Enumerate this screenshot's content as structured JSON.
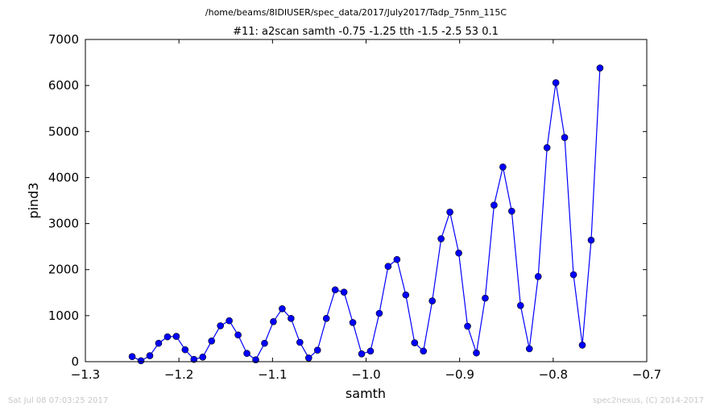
{
  "footer": {
    "timestamp": "Sat Jul 08 07:03:25 2017",
    "credit": "spec2nexus, (C) 2014-2017"
  },
  "chart_data": {
    "type": "line",
    "suptitle": "/home/beams/8IDIUSER/spec_data/2017/July2017/Tadp_75nm_115C",
    "title": "#11: a2scan  samth -0.75 -1.25  tth -1.5 -2.5  53 0.1",
    "xlabel": "samth",
    "ylabel": "pind3",
    "xlim": [
      -1.3,
      -0.7
    ],
    "ylim": [
      0,
      7000
    ],
    "xticks": [
      -1.3,
      -1.2,
      -1.1,
      -1.0,
      -0.9,
      -0.8,
      -0.7
    ],
    "xtick_labels": [
      "−1.3",
      "−1.2",
      "−1.1",
      "−1.0",
      "−0.9",
      "−0.8",
      "−0.7"
    ],
    "yticks": [
      0,
      1000,
      2000,
      3000,
      4000,
      5000,
      6000,
      7000
    ],
    "ytick_labels": [
      "0",
      "1000",
      "2000",
      "3000",
      "4000",
      "5000",
      "6000",
      "7000"
    ],
    "grid": false,
    "line_color": "#0000ff",
    "marker": "circle",
    "series": [
      {
        "x": [
          -1.25,
          -1.24057,
          -1.23113,
          -1.2217,
          -1.21226,
          -1.20283,
          -1.1934,
          -1.18396,
          -1.17453,
          -1.16509,
          -1.15566,
          -1.14623,
          -1.13679,
          -1.12736,
          -1.11792,
          -1.10849,
          -1.09906,
          -1.08962,
          -1.08019,
          -1.07075,
          -1.06132,
          -1.05189,
          -1.04245,
          -1.03302,
          -1.02358,
          -1.01415,
          -1.00472,
          -0.99528,
          -0.98585,
          -0.97642,
          -0.96698,
          -0.95755,
          -0.94811,
          -0.93868,
          -0.92925,
          -0.91981,
          -0.91038,
          -0.90094,
          -0.89151,
          -0.88208,
          -0.87264,
          -0.86321,
          -0.85377,
          -0.84434,
          -0.83491,
          -0.82547,
          -0.81604,
          -0.8066,
          -0.79717,
          -0.78774,
          -0.7783,
          -0.76887,
          -0.75943,
          -0.75
        ],
        "y": [
          110,
          20,
          130,
          400,
          540,
          550,
          260,
          50,
          100,
          450,
          780,
          890,
          580,
          180,
          40,
          400,
          870,
          1150,
          940,
          420,
          80,
          250,
          940,
          1560,
          1510,
          850,
          170,
          230,
          1050,
          2070,
          2220,
          1450,
          410,
          230,
          1320,
          2670,
          3250,
          2360,
          770,
          190,
          1380,
          3400,
          4230,
          3270,
          1220,
          280,
          1850,
          4650,
          6060,
          4870,
          1890,
          360,
          2640,
          6380
        ]
      }
    ]
  }
}
